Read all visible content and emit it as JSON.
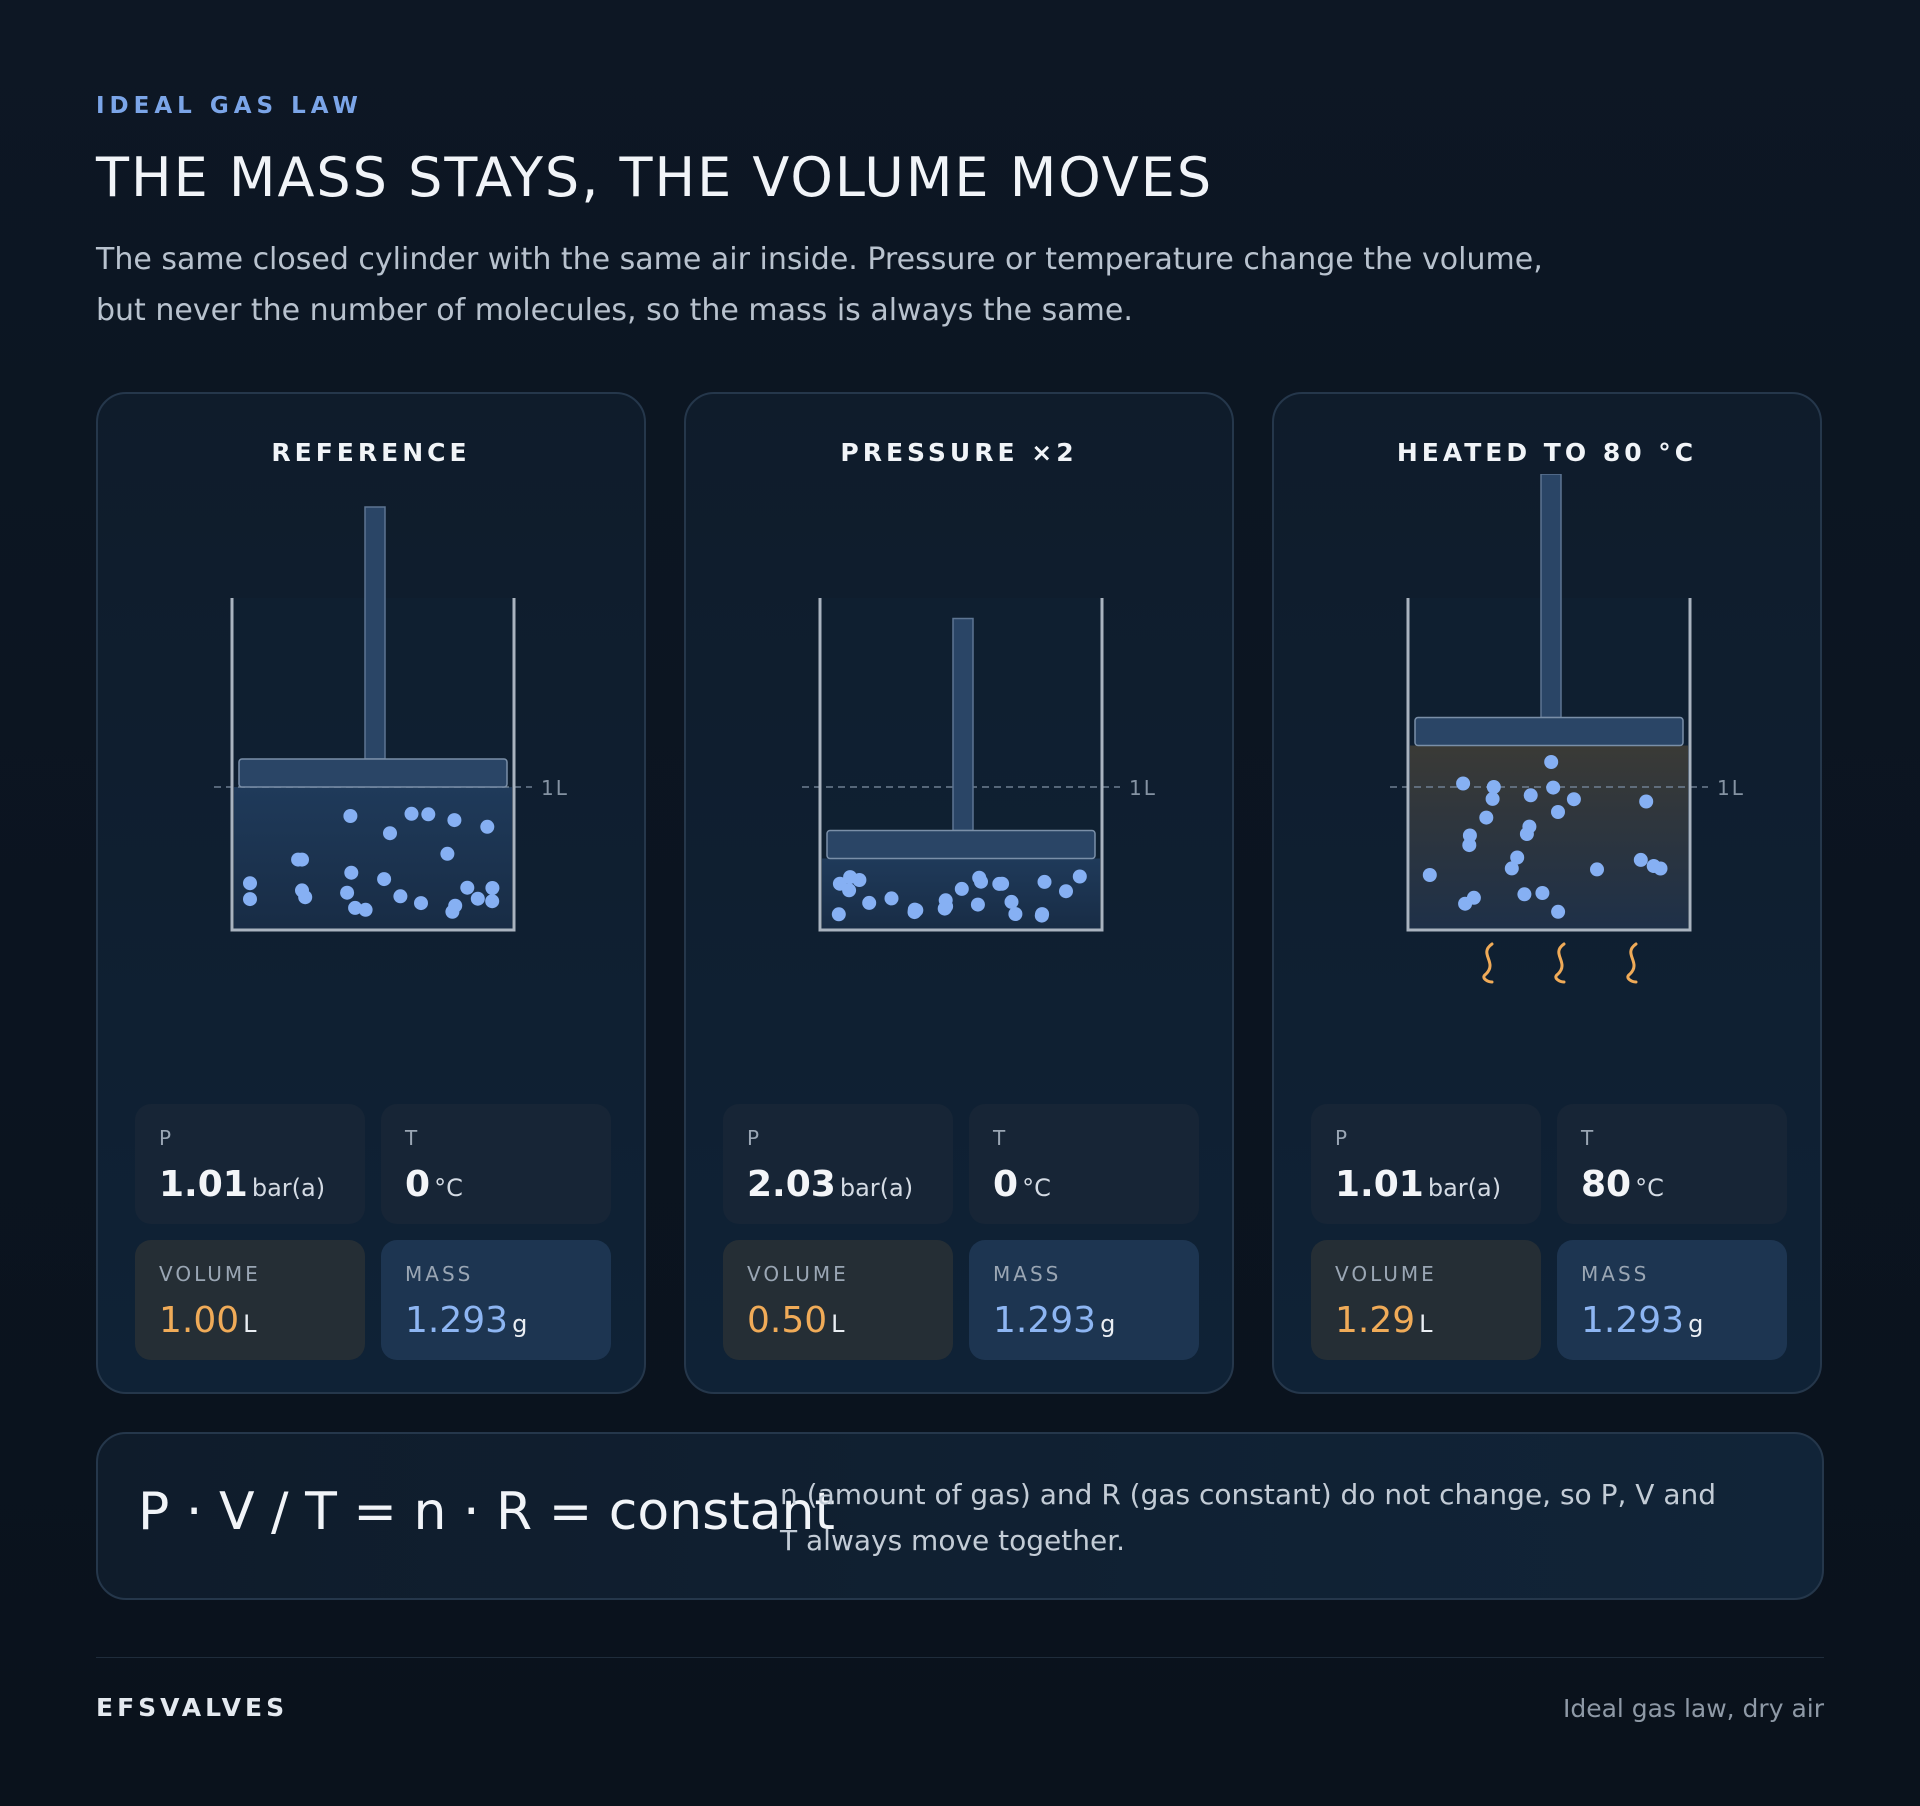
{
  "header": {
    "eyebrow": "IDEAL GAS LAW",
    "title": "THE MASS STAYS, THE VOLUME MOVES",
    "subtitle": "The same closed cylinder with the same air inside. Pressure or temperature change the volume, but never the number of molecules, so the mass is always the same."
  },
  "colors": {
    "accent": "#7ba5e8",
    "volume": "#f0ab58",
    "mass": "#8db5f2",
    "molecule": "#86b0f3",
    "heat": "#f0ab58"
  },
  "reference_label": "1L",
  "cards": [
    {
      "title": "REFERENCE",
      "volume_liters": 1.0,
      "heated": false,
      "stats": {
        "p_label": "P",
        "p_value": "1.01",
        "p_unit": "bar(a)",
        "t_label": "T",
        "t_value": "0",
        "t_unit": "°C",
        "v_label": "VOLUME",
        "v_value": "1.00",
        "v_unit": "L",
        "m_label": "MASS",
        "m_value": "1.293",
        "m_unit": "g"
      }
    },
    {
      "title": "PRESSURE ×2",
      "volume_liters": 0.5,
      "heated": false,
      "stats": {
        "p_label": "P",
        "p_value": "2.03",
        "p_unit": "bar(a)",
        "t_label": "T",
        "t_value": "0",
        "t_unit": "°C",
        "v_label": "VOLUME",
        "v_value": "0.50",
        "v_unit": "L",
        "m_label": "MASS",
        "m_value": "1.293",
        "m_unit": "g"
      }
    },
    {
      "title": "HEATED TO 80 °C",
      "volume_liters": 1.29,
      "heated": true,
      "stats": {
        "p_label": "P",
        "p_value": "1.01",
        "p_unit": "bar(a)",
        "t_label": "T",
        "t_value": "80",
        "t_unit": "°C",
        "v_label": "VOLUME",
        "v_value": "1.29",
        "v_unit": "L",
        "m_label": "MASS",
        "m_value": "1.293",
        "m_unit": "g"
      }
    }
  ],
  "formula": {
    "equation": "P · V / T = n · R = constant",
    "note": "n (amount of gas) and R (gas constant) do not change, so P, V and T always move together."
  },
  "footer": {
    "brand": "EFSVALVES",
    "note": "Ideal gas law, dry air"
  }
}
